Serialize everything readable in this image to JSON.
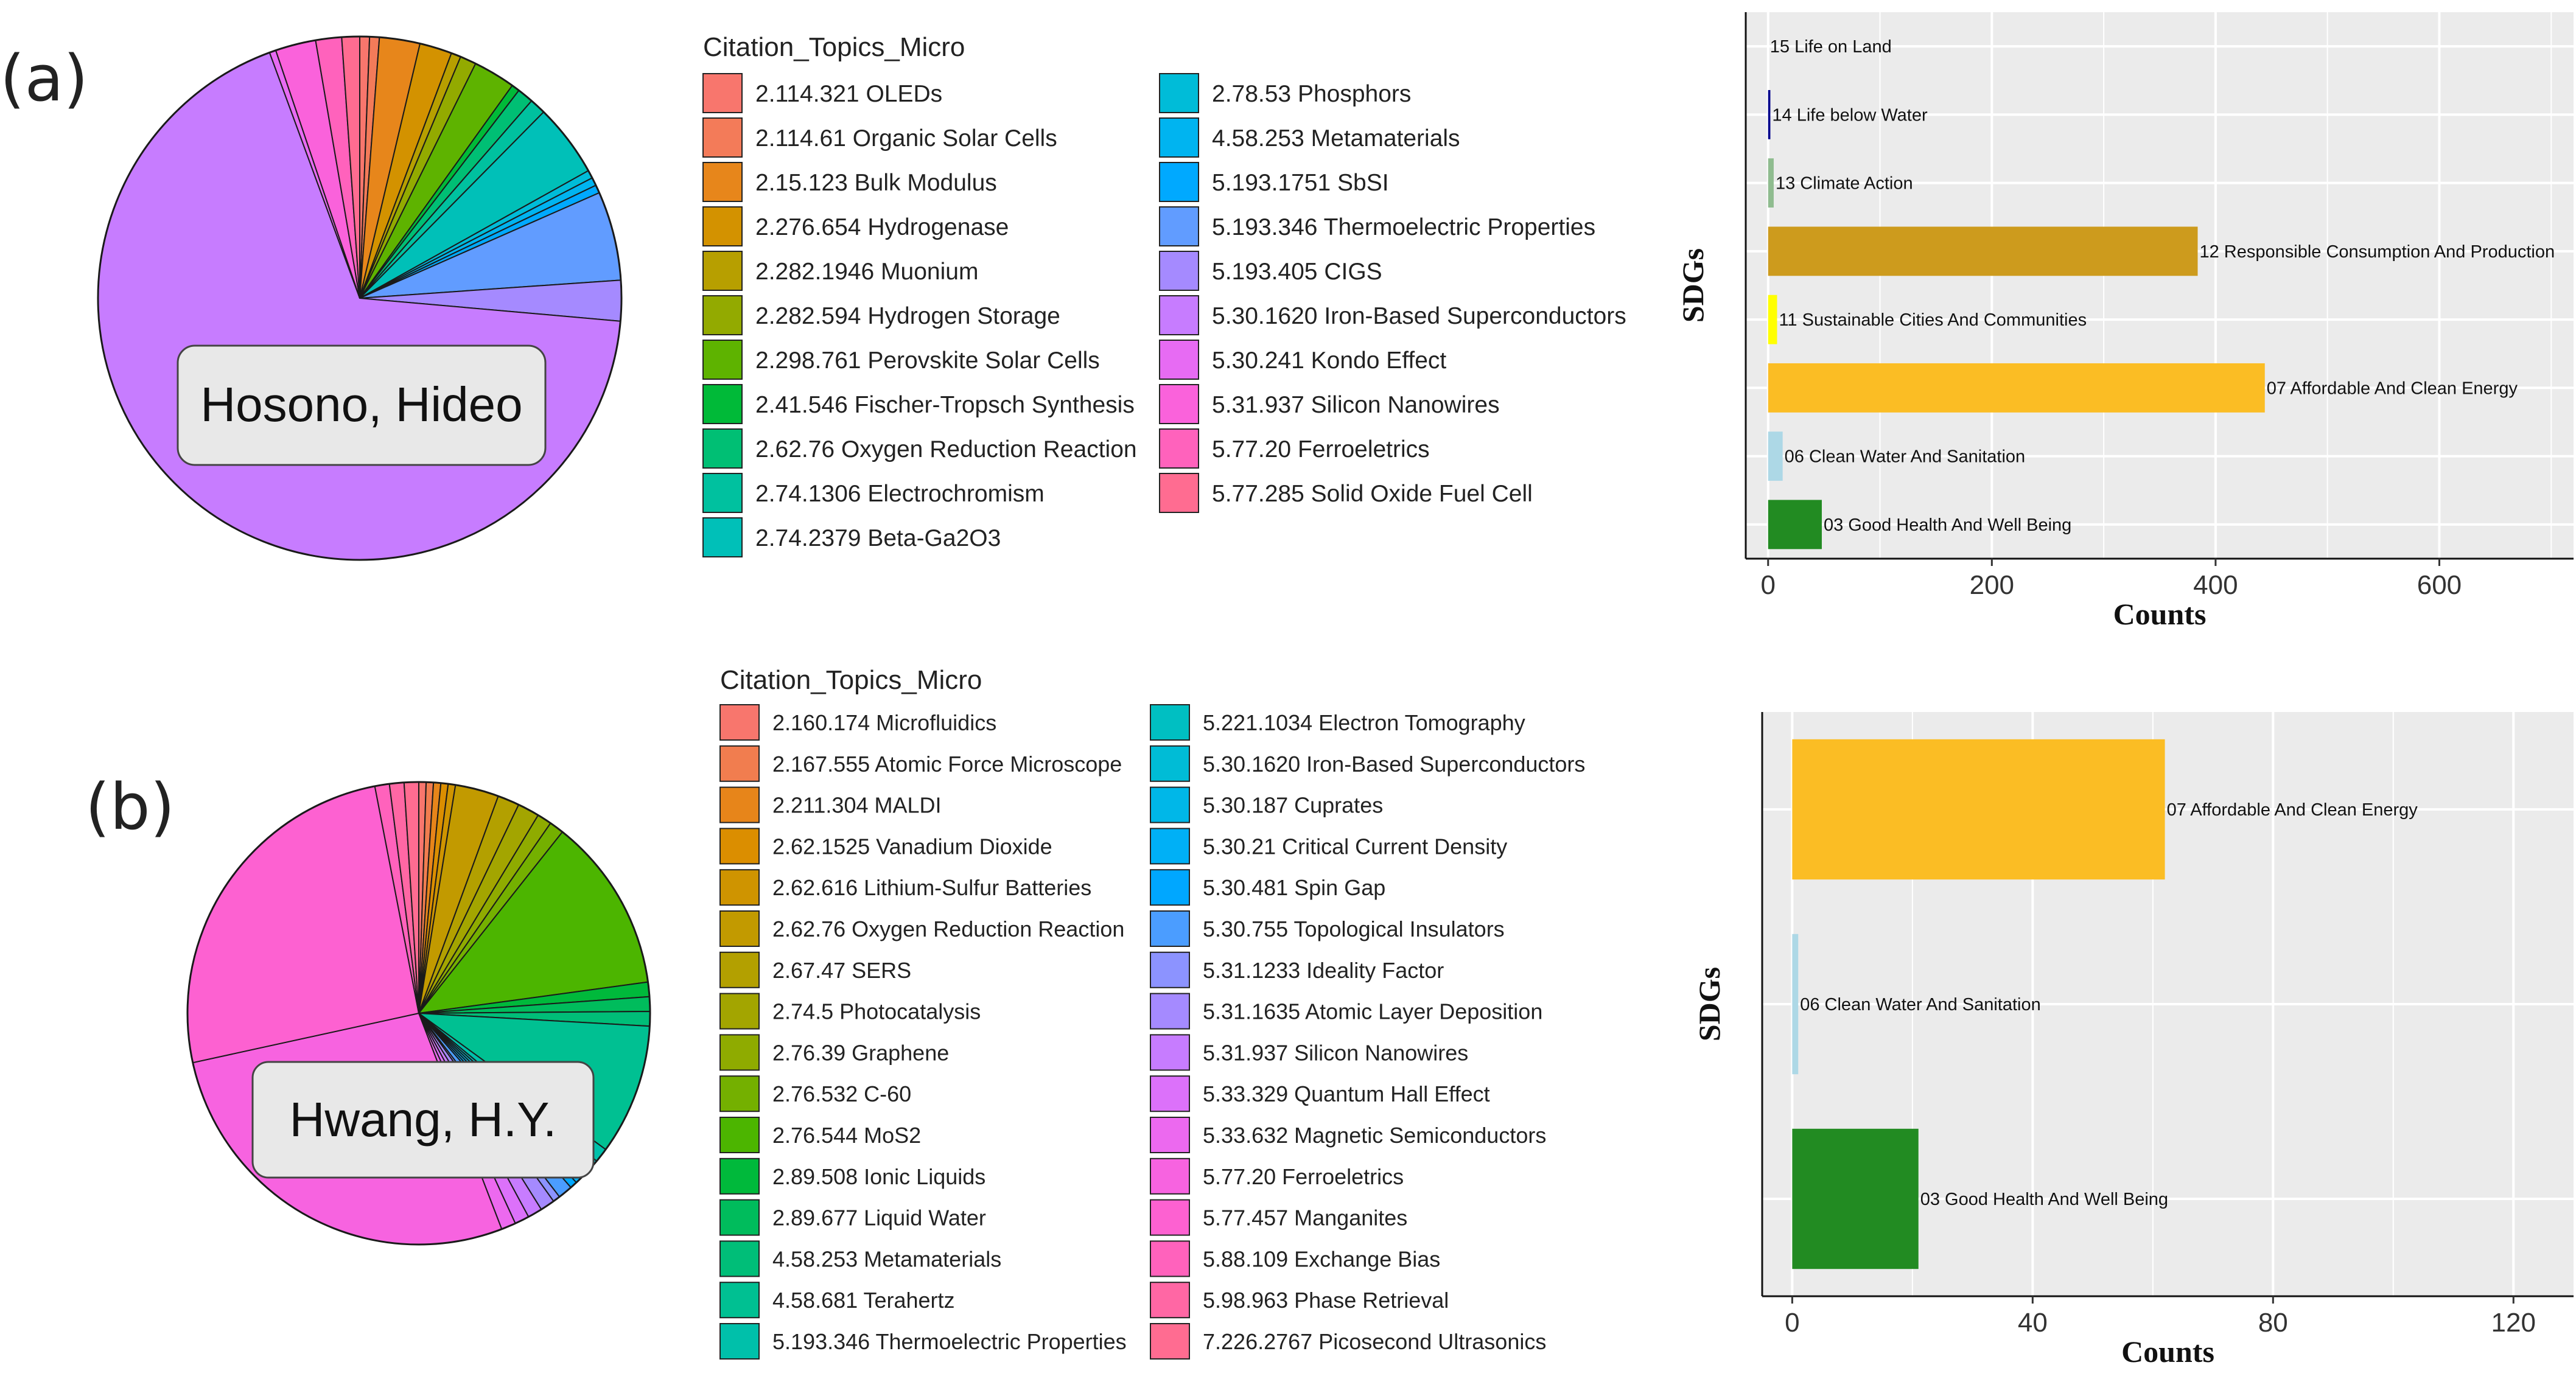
{
  "panels": [
    {
      "label": "(a)",
      "author": "Hosono, Hideo",
      "legend_title": "Citation_Topics_Micro",
      "pie_slices": [
        {
          "topic": "2.114.321 OLEDs",
          "color": "#f8766d",
          "value": 0.6
        },
        {
          "topic": "2.114.61 Organic Solar Cells",
          "color": "#f37b59",
          "value": 0.6
        },
        {
          "topic": "2.15.123 Bulk Modulus",
          "color": "#e7861b",
          "value": 2.5
        },
        {
          "topic": "2.276.654 Hydrogenase",
          "color": "#d39200",
          "value": 2.0
        },
        {
          "topic": "2.282.1946 Muonium",
          "color": "#b79f00",
          "value": 0.6
        },
        {
          "topic": "2.282.594 Hydrogen Storage",
          "color": "#93aa00",
          "value": 1.0
        },
        {
          "topic": "2.298.761 Perovskite Solar Cells",
          "color": "#5eb300",
          "value": 2.6
        },
        {
          "topic": "2.41.546 Fischer-Tropsch Synthesis",
          "color": "#00ba38",
          "value": 0.5
        },
        {
          "topic": "2.62.76 Oxygen Reduction Reaction",
          "color": "#00bf74",
          "value": 1.0
        },
        {
          "topic": "2.74.1306 Electrochromism",
          "color": "#00c19f",
          "value": 1.0
        },
        {
          "topic": "2.74.2379 Beta-Ga2O3",
          "color": "#00c0b8",
          "value": 4.5
        },
        {
          "topic": "2.78.53 Phosphors",
          "color": "#00bcd8",
          "value": 0.5
        },
        {
          "topic": "4.58.253 Metamaterials",
          "color": "#00b4f0",
          "value": 0.5
        },
        {
          "topic": "5.193.1751 SbSI",
          "color": "#00a9ff",
          "value": 0.5
        },
        {
          "topic": "5.193.346 Thermoelectric Properties",
          "color": "#619cff",
          "value": 5.5
        },
        {
          "topic": "5.193.405 CIGS",
          "color": "#a58aff",
          "value": 2.5
        },
        {
          "topic": "5.30.1620 Iron-Based Superconductors",
          "color": "#c77cff",
          "value": 68.0
        },
        {
          "topic": "5.30.241 Kondo Effect",
          "color": "#e76bf3",
          "value": 0.4
        },
        {
          "topic": "5.31.937 Silicon Nanowires",
          "color": "#fa62db",
          "value": 2.5
        },
        {
          "topic": "5.77.20 Ferroeletrics",
          "color": "#ff62bc",
          "value": 1.6
        },
        {
          "topic": "5.77.285 Solid Oxide Fuel Cell",
          "color": "#ff6c91",
          "value": 1.1
        }
      ],
      "sdg_chart": {
        "type": "bar",
        "title": "",
        "xlabel": "Counts",
        "ylabel": "SDGs",
        "xlim": [
          -20,
          720
        ],
        "xticks": [
          0,
          200,
          400,
          600
        ],
        "bars": [
          {
            "label": "15 Life on Land",
            "value": 0,
            "color": "#1a1a8c"
          },
          {
            "label": "14 Life below Water",
            "value": 2,
            "color": "#00008b"
          },
          {
            "label": "13 Climate Action",
            "value": 5,
            "color": "#8fbc8f"
          },
          {
            "label": "12 Responsible Consumption And Production",
            "value": 384,
            "color": "#cd9b1d"
          },
          {
            "label": "11 Sustainable Cities And Communities",
            "value": 8,
            "color": "#ffff00"
          },
          {
            "label": "07 Affordable And Clean Energy",
            "value": 444,
            "color": "#fbbd24"
          },
          {
            "label": "06 Clean Water And Sanitation",
            "value": 13,
            "color": "#add8e6"
          },
          {
            "label": "03 Good Health And Well Being",
            "value": 48,
            "color": "#228b22"
          }
        ]
      }
    },
    {
      "label": "(b)",
      "author": "Hwang, H.Y.",
      "legend_title": "Citation_Topics_Micro",
      "pie_slices": [
        {
          "topic": "2.160.174 Microfluidics",
          "color": "#f8766d",
          "value": 0.5
        },
        {
          "topic": "2.167.555 Atomic Force Microscope",
          "color": "#f17d4f",
          "value": 0.5
        },
        {
          "topic": "2.211.304 MALDI",
          "color": "#e7851a",
          "value": 0.5
        },
        {
          "topic": "2.62.1525 Vanadium Dioxide",
          "color": "#db8e00",
          "value": 0.5
        },
        {
          "topic": "2.62.616 Lithium-Sulfur Batteries",
          "color": "#cf9400",
          "value": 0.5
        },
        {
          "topic": "2.62.76 Oxygen Reduction Reaction",
          "color": "#c29a00",
          "value": 3.0
        },
        {
          "topic": "2.67.47 SERS",
          "color": "#b3a000",
          "value": 1.5
        },
        {
          "topic": "2.74.5 Photocatalysis",
          "color": "#a3a500",
          "value": 1.5
        },
        {
          "topic": "2.76.39 Graphene",
          "color": "#8fab00",
          "value": 1.0
        },
        {
          "topic": "2.76.532 C-60",
          "color": "#74b000",
          "value": 1.0
        },
        {
          "topic": "2.76.544 MoS2",
          "color": "#4cb500",
          "value": 12.0
        },
        {
          "topic": "2.89.508 Ionic Liquids",
          "color": "#00b93b",
          "value": 1.0
        },
        {
          "topic": "2.89.677 Liquid Water",
          "color": "#00bc5c",
          "value": 1.0
        },
        {
          "topic": "4.58.253 Metamaterials",
          "color": "#00be78",
          "value": 1.0
        },
        {
          "topic": "4.58.681 Terahertz",
          "color": "#00c092",
          "value": 9.0
        },
        {
          "topic": "5.193.346 Thermoelectric Properties",
          "color": "#00c0aa",
          "value": 1.0
        },
        {
          "topic": "5.221.1034 Electron Tomography",
          "color": "#00bfc2",
          "value": 0.5
        },
        {
          "topic": "5.30.1620 Iron-Based Superconductors",
          "color": "#00bcd6",
          "value": 0.5
        },
        {
          "topic": "5.30.187 Cuprates",
          "color": "#00b7e8",
          "value": 0.5
        },
        {
          "topic": "5.30.21 Critical Current Density",
          "color": "#00b0f6",
          "value": 0.5
        },
        {
          "topic": "5.30.481 Spin Gap",
          "color": "#00a7ff",
          "value": 0.5
        },
        {
          "topic": "5.30.755 Topological Insulators",
          "color": "#4b9dff",
          "value": 1.0
        },
        {
          "topic": "5.31.1233 Ideality Factor",
          "color": "#8c93ff",
          "value": 0.5
        },
        {
          "topic": "5.31.1635 Atomic Layer Deposition",
          "color": "#a58aff",
          "value": 1.0
        },
        {
          "topic": "5.31.937 Silicon Nanowires",
          "color": "#c77cff",
          "value": 1.0
        },
        {
          "topic": "5.33.329 Quantum Hall Effect",
          "color": "#dc71fa",
          "value": 1.0
        },
        {
          "topic": "5.33.632 Magnetic Semiconductors",
          "color": "#ec69ef",
          "value": 1.0
        },
        {
          "topic": "5.77.20 Ferroeletrics",
          "color": "#f763e0",
          "value": 27.0
        },
        {
          "topic": "5.77.457 Manganites",
          "color": "#fd61d1",
          "value": 25.0
        },
        {
          "topic": "5.88.109 Exchange Bias",
          "color": "#ff62bc",
          "value": 1.0
        },
        {
          "topic": "5.98.963 Phase Retrieval",
          "color": "#ff67a4",
          "value": 1.0
        },
        {
          "topic": "7.226.2767 Picosecond Ultrasonics",
          "color": "#ff6c91",
          "value": 1.0
        }
      ],
      "sdg_chart": {
        "type": "bar",
        "title": "",
        "xlabel": "Counts",
        "ylabel": "SDGs",
        "xlim": [
          -5,
          130
        ],
        "xticks": [
          0,
          40,
          80,
          120
        ],
        "bars": [
          {
            "label": "07 Affordable And Clean Energy",
            "value": 62,
            "color": "#fbbd24"
          },
          {
            "label": "06 Clean Water And Sanitation",
            "value": 1,
            "color": "#add8e6"
          },
          {
            "label": "03 Good Health And Well Being",
            "value": 21,
            "color": "#228b22"
          }
        ]
      }
    }
  ]
}
